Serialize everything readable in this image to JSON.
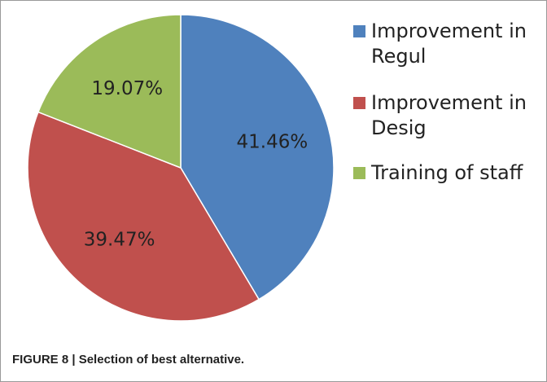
{
  "chart_data": {
    "type": "pie",
    "categories": [
      "Improvement in Regul",
      "Improvement in Desig",
      "Training of staff"
    ],
    "values": [
      41.46,
      39.47,
      19.07
    ],
    "value_labels": [
      "41.46%",
      "39.47%",
      "19.07%"
    ],
    "colors": [
      "#4f81bd",
      "#c0504d",
      "#9bbb59"
    ],
    "legend": "right",
    "caption": "FIGURE 8 | Selection of best alternative."
  }
}
